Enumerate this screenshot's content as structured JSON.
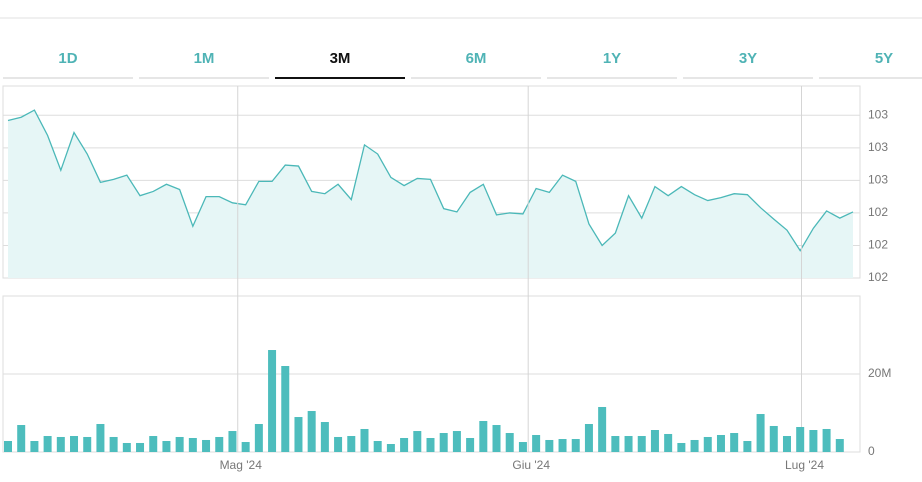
{
  "tabs": {
    "items": [
      "1D",
      "1M",
      "3M",
      "6M",
      "1Y",
      "3Y",
      "5Y"
    ],
    "active": 2
  },
  "chart_data": [
    {
      "type": "line",
      "color": "#4bb8b8",
      "fill": "#e6f6f6",
      "grid": true,
      "xlim": [
        0,
        64
      ],
      "ylim": [
        102.25,
        102.84
      ],
      "yticks": [
        {
          "value": 102.25,
          "label": "102"
        },
        {
          "value": 102.35,
          "label": "102"
        },
        {
          "value": 102.45,
          "label": "102"
        },
        {
          "value": 102.55,
          "label": "103"
        },
        {
          "value": 102.65,
          "label": "103"
        },
        {
          "value": 102.75,
          "label": "103"
        }
      ],
      "values": [
        102.734,
        102.744,
        102.766,
        102.688,
        102.581,
        102.697,
        102.631,
        102.544,
        102.553,
        102.566,
        102.503,
        102.516,
        102.538,
        102.522,
        102.409,
        102.5,
        102.5,
        102.481,
        102.475,
        102.547,
        102.547,
        102.597,
        102.594,
        102.516,
        102.509,
        102.538,
        102.491,
        102.659,
        102.631,
        102.559,
        102.534,
        102.556,
        102.553,
        102.463,
        102.453,
        102.513,
        102.538,
        102.444,
        102.45,
        102.447,
        102.525,
        102.513,
        102.566,
        102.547,
        102.416,
        102.35,
        102.388,
        102.503,
        102.434,
        102.531,
        102.503,
        102.531,
        102.506,
        102.488,
        102.497,
        102.509,
        102.506,
        102.466,
        102.431,
        102.397,
        102.334,
        102.403,
        102.456,
        102.434,
        102.453
      ]
    },
    {
      "type": "bar",
      "color": "#4dbdbd",
      "grid": true,
      "xlim": [
        0,
        64
      ],
      "ylim": [
        0,
        40
      ],
      "yticks": [
        0,
        {
          "value": 20,
          "label": "20M"
        }
      ],
      "xticks": [
        {
          "value": 17.4,
          "label": "Mag '24"
        },
        {
          "value": 39.4,
          "label": "Giu '24"
        },
        {
          "value": 60.1,
          "label": "Lug '24"
        }
      ],
      "values": [
        2.82,
        6.92,
        2.82,
        4.1,
        3.85,
        4.1,
        3.85,
        7.18,
        3.85,
        2.31,
        2.31,
        4.1,
        2.82,
        3.85,
        3.59,
        3.08,
        3.85,
        5.38,
        2.56,
        7.18,
        26.15,
        22.05,
        8.97,
        10.51,
        7.69,
        3.85,
        4.1,
        5.9,
        2.82,
        2.05,
        3.59,
        5.38,
        3.59,
        4.87,
        5.38,
        3.59,
        7.95,
        6.92,
        4.87,
        2.56,
        4.36,
        3.08,
        3.33,
        3.33,
        7.18,
        11.54,
        4.1,
        4.1,
        4.1,
        5.64,
        4.62,
        2.31,
        3.08,
        3.85,
        4.36,
        4.87,
        2.82,
        9.74,
        6.67,
        4.1,
        6.41,
        5.64,
        5.9,
        3.33
      ]
    }
  ]
}
